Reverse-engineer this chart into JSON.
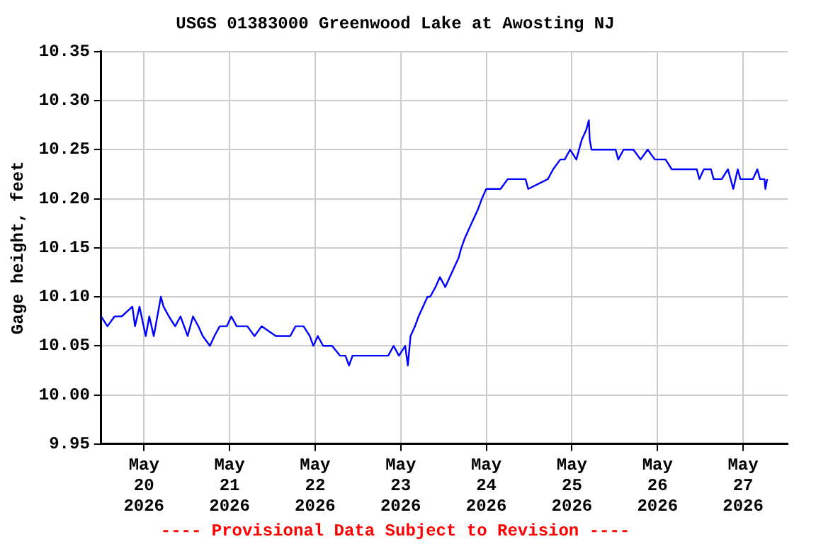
{
  "chart_data": {
    "type": "line",
    "title": "USGS 01383000 Greenwood Lake at Awosting NJ",
    "ylabel": "Gage height, feet",
    "annotations": [
      "---- Provisional Data Subject to Revision ----"
    ],
    "xlim": [
      "2026-05-19T12:00",
      "2026-05-27T12:30"
    ],
    "xticks": [
      {
        "value": "2026-05-20",
        "label": "May 20 2026"
      },
      {
        "value": "2026-05-21",
        "label": "May 21 2026"
      },
      {
        "value": "2026-05-22",
        "label": "May 22 2026"
      },
      {
        "value": "2026-05-23",
        "label": "May 23 2026"
      },
      {
        "value": "2026-05-24",
        "label": "May 24 2026"
      },
      {
        "value": "2026-05-25",
        "label": "May 25 2026"
      },
      {
        "value": "2026-05-26",
        "label": "May 26 2026"
      },
      {
        "value": "2026-05-27",
        "label": "May 27 2026"
      }
    ],
    "ylim": [
      9.95,
      10.35
    ],
    "yticks": [
      {
        "value": 9.95,
        "label": "9.95"
      },
      {
        "value": 10.0,
        "label": "10.00"
      },
      {
        "value": 10.05,
        "label": "10.05"
      },
      {
        "value": 10.1,
        "label": "10.10"
      },
      {
        "value": 10.15,
        "label": "10.15"
      },
      {
        "value": 10.2,
        "label": "10.20"
      },
      {
        "value": 10.25,
        "label": "10.25"
      },
      {
        "value": 10.3,
        "label": "10.30"
      },
      {
        "value": 10.35,
        "label": "10.35"
      }
    ],
    "grid": true,
    "legend": false,
    "marker": "none",
    "line_style": "solid",
    "x": [
      "2026-05-19T12:00",
      "2026-05-19T13:45",
      "2026-05-19T15:45",
      "2026-05-19T17:45",
      "2026-05-19T20:45",
      "2026-05-19T21:30",
      "2026-05-19T22:45",
      "2026-05-20T00:30",
      "2026-05-20T01:30",
      "2026-05-20T02:45",
      "2026-05-20T04:45",
      "2026-05-20T05:30",
      "2026-05-20T07:00",
      "2026-05-20T08:45",
      "2026-05-20T10:15",
      "2026-05-20T12:15",
      "2026-05-20T13:45",
      "2026-05-20T15:15",
      "2026-05-20T16:30",
      "2026-05-20T18:30",
      "2026-05-20T19:45",
      "2026-05-20T21:15",
      "2026-05-20T23:15",
      "2026-05-21T00:30",
      "2026-05-21T02:00",
      "2026-05-21T05:00",
      "2026-05-21T07:00",
      "2026-05-21T09:00",
      "2026-05-21T13:00",
      "2026-05-21T17:00",
      "2026-05-21T18:30",
      "2026-05-21T20:45",
      "2026-05-21T22:30",
      "2026-05-21T23:30",
      "2026-05-22T00:45",
      "2026-05-22T02:15",
      "2026-05-22T04:45",
      "2026-05-22T07:00",
      "2026-05-22T08:30",
      "2026-05-22T09:30",
      "2026-05-22T10:30",
      "2026-05-22T16:30",
      "2026-05-22T20:30",
      "2026-05-22T22:00",
      "2026-05-22T23:30",
      "2026-05-23T01:15",
      "2026-05-23T02:00",
      "2026-05-23T02:45",
      "2026-05-23T04:00",
      "2026-05-23T05:00",
      "2026-05-23T06:15",
      "2026-05-23T07:30",
      "2026-05-23T08:15",
      "2026-05-23T09:45",
      "2026-05-23T11:00",
      "2026-05-23T12:30",
      "2026-05-23T13:45",
      "2026-05-23T15:00",
      "2026-05-23T16:15",
      "2026-05-23T17:00",
      "2026-05-23T18:00",
      "2026-05-23T19:15",
      "2026-05-23T20:30",
      "2026-05-23T21:45",
      "2026-05-23T22:45",
      "2026-05-24T00:00",
      "2026-05-24T02:00",
      "2026-05-24T04:00",
      "2026-05-24T06:00",
      "2026-05-24T11:00",
      "2026-05-24T11:45",
      "2026-05-24T17:15",
      "2026-05-24T18:45",
      "2026-05-24T20:45",
      "2026-05-24T22:00",
      "2026-05-24T23:30",
      "2026-05-25T01:15",
      "2026-05-25T02:45",
      "2026-05-25T04:00",
      "2026-05-25T04:45",
      "2026-05-25T05:00",
      "2026-05-25T05:30",
      "2026-05-25T07:30",
      "2026-05-25T12:15",
      "2026-05-25T13:00",
      "2026-05-25T14:30",
      "2026-05-25T17:15",
      "2026-05-25T19:15",
      "2026-05-25T21:15",
      "2026-05-25T23:15",
      "2026-05-26T02:15",
      "2026-05-26T04:00",
      "2026-05-26T07:00",
      "2026-05-26T11:00",
      "2026-05-26T11:45",
      "2026-05-26T13:00",
      "2026-05-26T15:00",
      "2026-05-26T15:45",
      "2026-05-26T18:00",
      "2026-05-26T19:45",
      "2026-05-26T21:15",
      "2026-05-26T22:30",
      "2026-05-26T23:15",
      "2026-05-27T00:45",
      "2026-05-27T02:45",
      "2026-05-27T04:00",
      "2026-05-27T04:45",
      "2026-05-27T06:00",
      "2026-05-27T06:15",
      "2026-05-27T06:45"
    ],
    "series": [
      {
        "color": "#0000ff",
        "values": [
          10.08,
          10.07,
          10.08,
          10.08,
          10.09,
          10.07,
          10.09,
          10.06,
          10.08,
          10.06,
          10.1,
          10.09,
          10.08,
          10.07,
          10.08,
          10.06,
          10.08,
          10.07,
          10.06,
          10.05,
          10.06,
          10.07,
          10.07,
          10.08,
          10.07,
          10.07,
          10.06,
          10.07,
          10.06,
          10.06,
          10.07,
          10.07,
          10.06,
          10.05,
          10.06,
          10.05,
          10.05,
          10.04,
          10.04,
          10.03,
          10.04,
          10.04,
          10.04,
          10.05,
          10.04,
          10.05,
          10.03,
          10.06,
          10.07,
          10.08,
          10.09,
          10.1,
          10.1,
          10.11,
          10.12,
          10.11,
          10.12,
          10.13,
          10.14,
          10.15,
          10.16,
          10.17,
          10.18,
          10.19,
          10.2,
          10.21,
          10.21,
          10.21,
          10.22,
          10.22,
          10.21,
          10.22,
          10.23,
          10.24,
          10.24,
          10.25,
          10.24,
          10.26,
          10.27,
          10.28,
          10.26,
          10.25,
          10.25,
          10.25,
          10.24,
          10.25,
          10.25,
          10.24,
          10.25,
          10.24,
          10.24,
          10.23,
          10.23,
          10.23,
          10.22,
          10.23,
          10.23,
          10.22,
          10.22,
          10.23,
          10.21,
          10.23,
          10.22,
          10.22,
          10.22,
          10.23,
          10.22,
          10.22,
          10.21,
          10.22
        ]
      }
    ]
  }
}
